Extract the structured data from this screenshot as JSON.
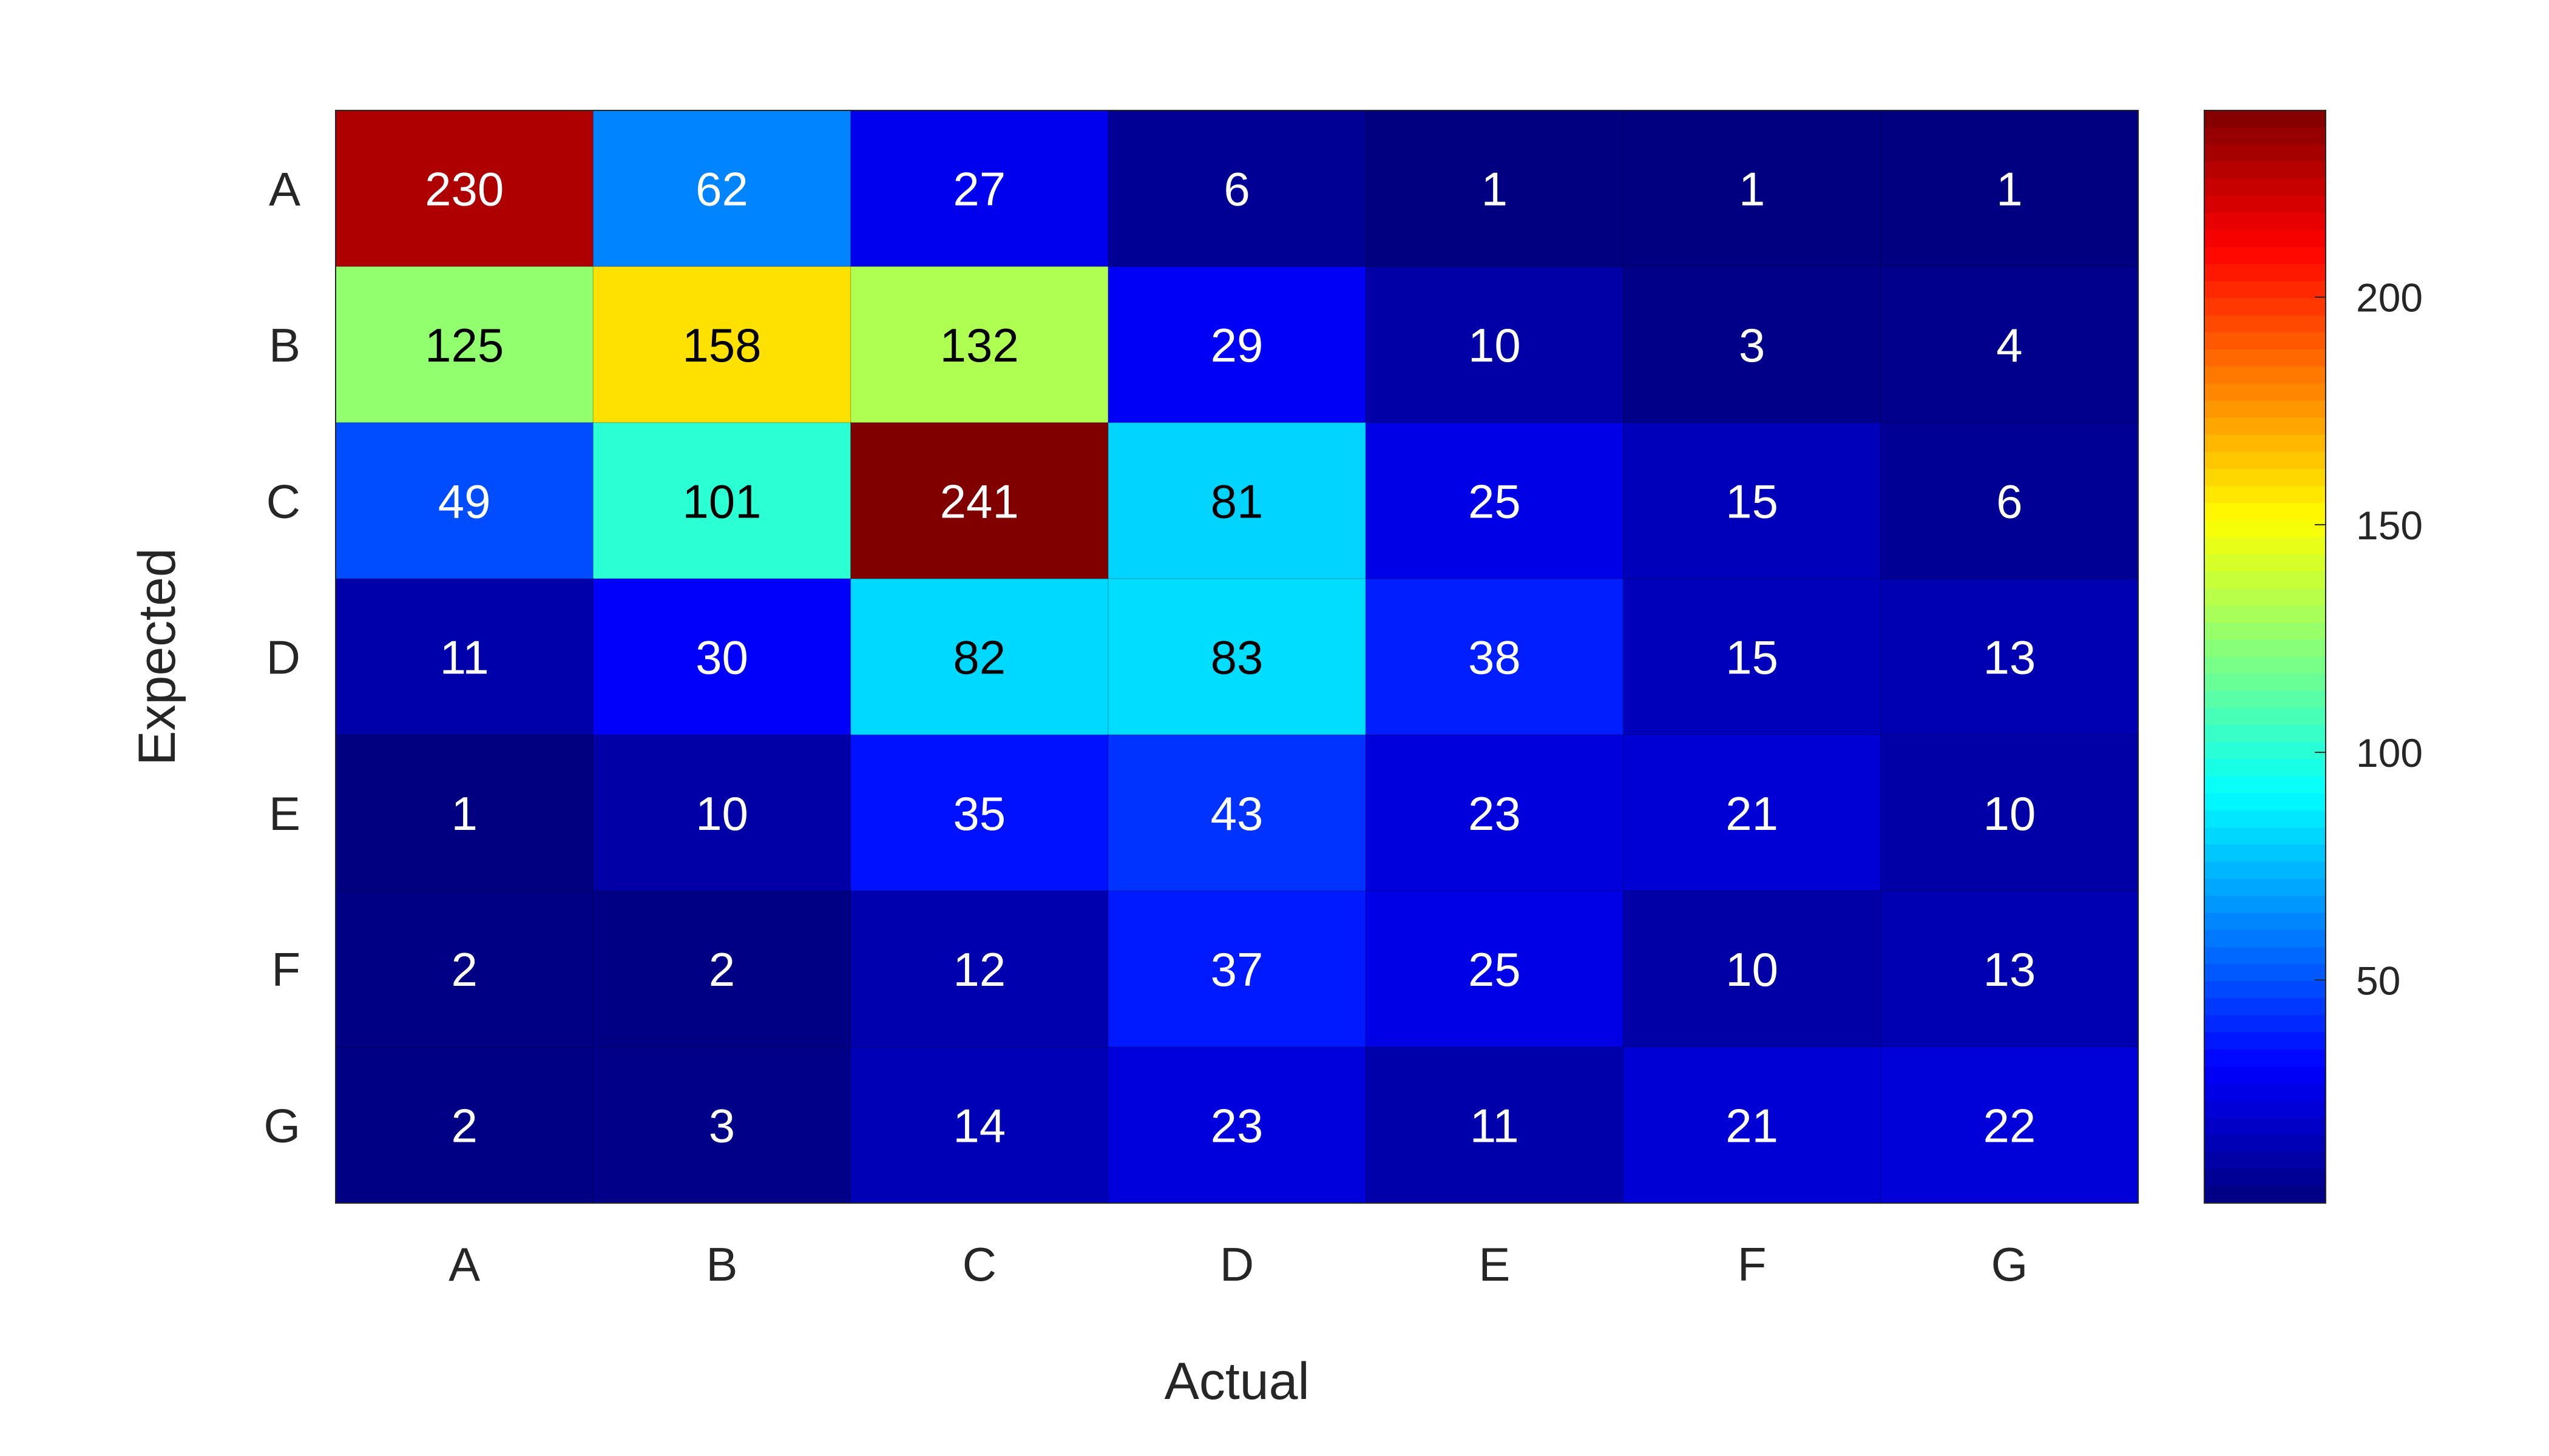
{
  "chart_data": {
    "type": "heatmap",
    "title": "",
    "xlabel": "Actual",
    "ylabel": "Expected",
    "x_categories": [
      "A",
      "B",
      "C",
      "D",
      "E",
      "F",
      "G"
    ],
    "y_categories": [
      "A",
      "B",
      "C",
      "D",
      "E",
      "F",
      "G"
    ],
    "values": [
      [
        230,
        62,
        27,
        6,
        1,
        1,
        1
      ],
      [
        125,
        158,
        132,
        29,
        10,
        3,
        4
      ],
      [
        49,
        101,
        241,
        81,
        25,
        15,
        6
      ],
      [
        11,
        30,
        82,
        83,
        38,
        15,
        13
      ],
      [
        1,
        10,
        35,
        43,
        23,
        21,
        10
      ],
      [
        2,
        2,
        12,
        37,
        25,
        10,
        13
      ],
      [
        2,
        3,
        14,
        23,
        11,
        21,
        22
      ]
    ],
    "colormap": "jet",
    "color_range": [
      1,
      241
    ],
    "colorbar_ticks": [
      50,
      100,
      150,
      200
    ]
  }
}
